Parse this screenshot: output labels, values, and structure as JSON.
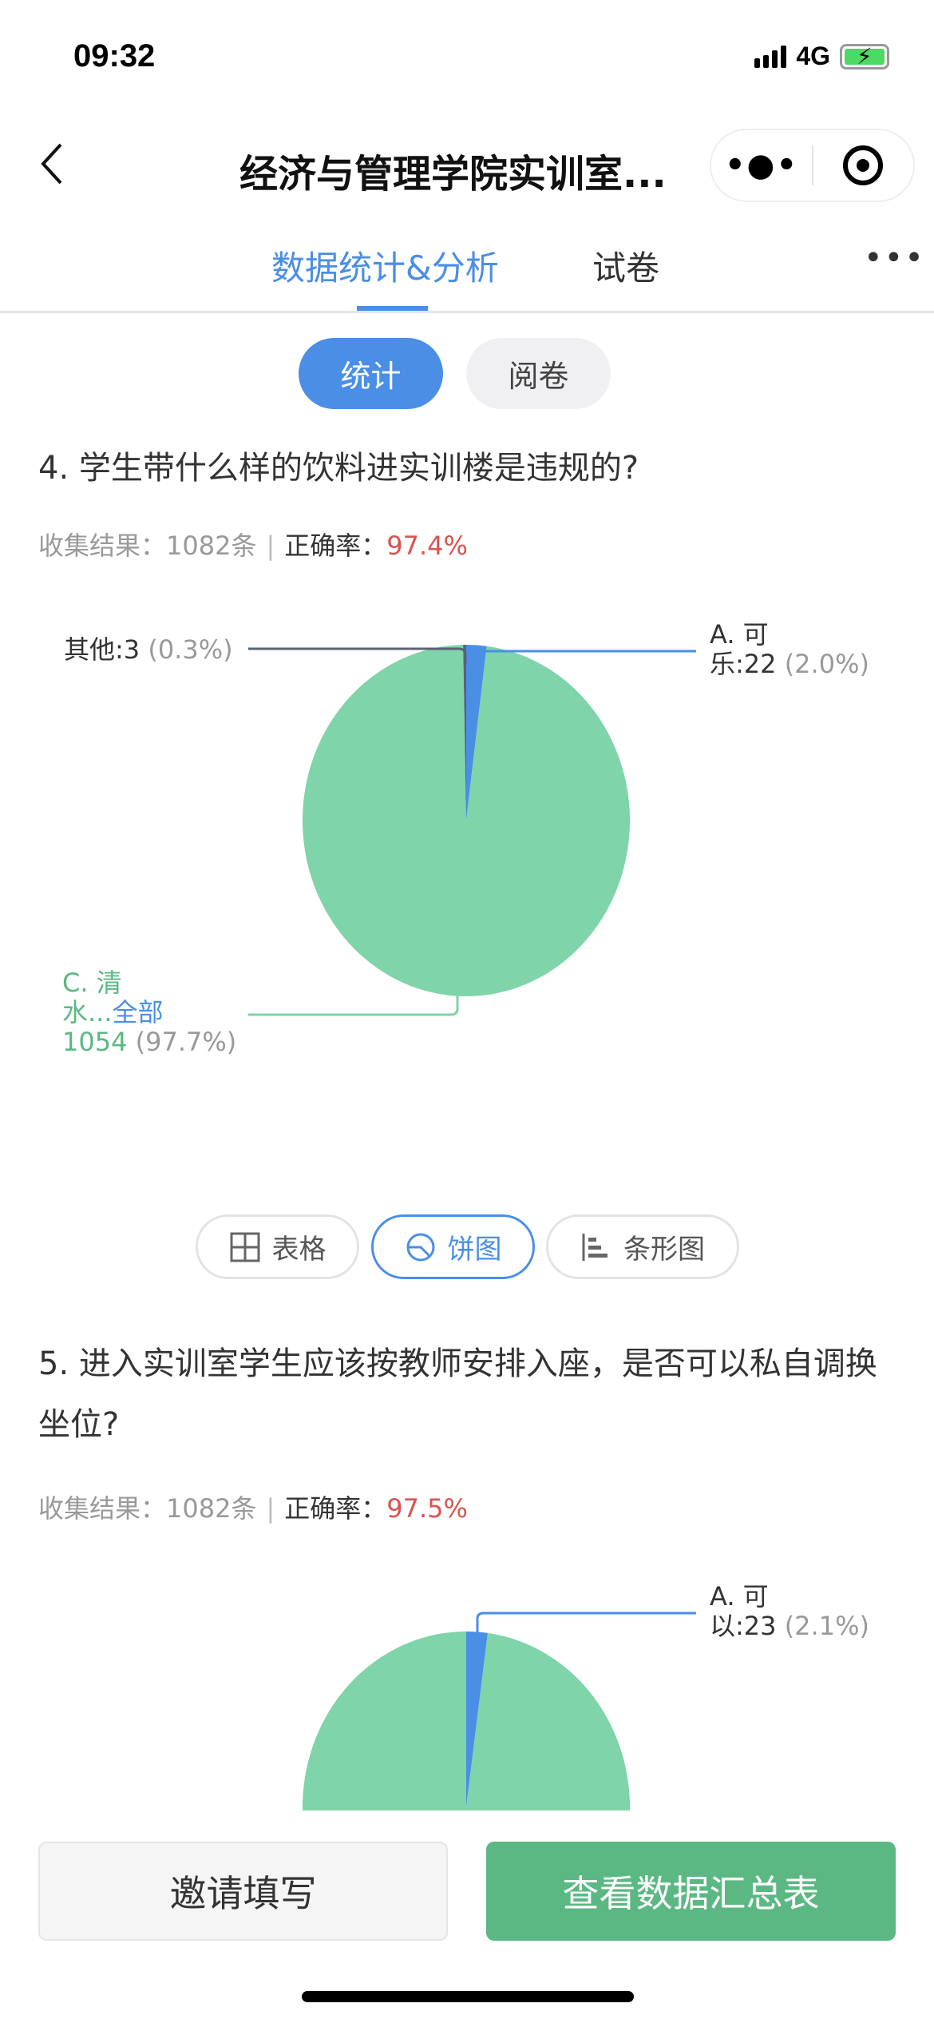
{
  "status_bar": {
    "time": "09:32",
    "network": "4G",
    "battery_icon": "battery-charging-icon"
  },
  "nav": {
    "back_icon": "chevron-left-icon",
    "title": "经济与管理学院实训室...",
    "more_icon": "more-dots-icon",
    "close_icon": "target-icon"
  },
  "tabs": [
    {
      "label": "数据统计&分析",
      "active": true
    },
    {
      "label": "试卷",
      "active": false
    }
  ],
  "tabs_more": "•••",
  "segments": [
    {
      "label": "统计",
      "active": true
    },
    {
      "label": "阅卷",
      "active": false
    }
  ],
  "colors": {
    "accent": "#4a8ee6",
    "green": "#7fd4a9",
    "other": "#5a6275",
    "rate": "#d9534f",
    "primary_button": "#5bb882"
  },
  "questions": [
    {
      "title": "4.  学生带什么样的饮料进实训楼是违规的?",
      "collected_label": "收集结果：",
      "collected_value": "1082条",
      "rate_label": "正确率：",
      "rate_value": "97.4%",
      "labels": {
        "other": {
          "text": "其他:3",
          "pct": "(0.3%)"
        },
        "a": {
          "line1": "A. 可",
          "line2": "乐:22",
          "pct": "(2.0%)"
        },
        "c": {
          "line1": "C. 清",
          "line2a": "水...",
          "line2b": "全部",
          "line3": "1054",
          "pct": "(97.7%)"
        }
      }
    },
    {
      "title": "5.  进入实训室学生应该按教师安排入座，是否可以私自调换坐位?",
      "collected_label": "收集结果：",
      "collected_value": "1082条",
      "rate_label": "正确率：",
      "rate_value": "97.5%",
      "labels": {
        "a": {
          "line1": "A. 可",
          "line2": "以:23",
          "pct": "(2.1%)"
        }
      }
    }
  ],
  "chart_data": [
    {
      "type": "pie",
      "slices": [
        {
          "name": "A. 可乐",
          "value": 22,
          "percent": 2.0,
          "color": "#4a8ee6"
        },
        {
          "name": "C. 清水...全部",
          "value": 1054,
          "percent": 97.7,
          "color": "#7fd4a9"
        },
        {
          "name": "其他",
          "value": 3,
          "percent": 0.3,
          "color": "#5a6275"
        }
      ]
    },
    {
      "type": "pie",
      "slices": [
        {
          "name": "A. 可以",
          "value": 23,
          "percent": 2.1,
          "color": "#4a8ee6"
        }
      ],
      "remainder_color": "#7fd4a9"
    }
  ],
  "chart_switch": [
    {
      "label": "表格",
      "icon": "table-icon",
      "active": false
    },
    {
      "label": "饼图",
      "icon": "pie-chart-icon",
      "active": true
    },
    {
      "label": "条形图",
      "icon": "bar-chart-icon",
      "active": false
    }
  ],
  "footer": {
    "invite": "邀请填写",
    "view_summary": "查看数据汇总表"
  }
}
